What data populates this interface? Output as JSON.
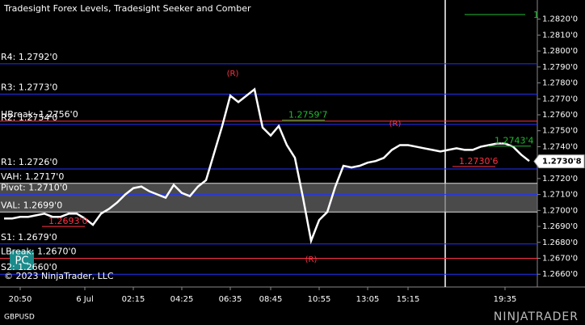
{
  "chart_data": {
    "type": "line",
    "title": "Tradesight Forex Levels, Tradesight Seeker and Comber",
    "symbol": "GBPUSD",
    "copyright": "© 2023 NinjaTrader, LLC",
    "button": "PC",
    "brand": "NINJATRADER",
    "corner_label": "1",
    "ylim": [
      1.2652,
      1.2832
    ],
    "yticks": [
      {
        "value": 1.282,
        "label": "1.2820'0"
      },
      {
        "value": 1.281,
        "label": "1.2810'0"
      },
      {
        "value": 1.28,
        "label": "1.2800'0"
      },
      {
        "value": 1.279,
        "label": "1.2790'0"
      },
      {
        "value": 1.278,
        "label": "1.2780'0"
      },
      {
        "value": 1.277,
        "label": "1.2770'0"
      },
      {
        "value": 1.276,
        "label": "1.2760'0"
      },
      {
        "value": 1.275,
        "label": "1.2750'0"
      },
      {
        "value": 1.274,
        "label": "1.2740'0"
      },
      {
        "value": 1.273,
        "label": "1.2730'0"
      },
      {
        "value": 1.272,
        "label": "1.2720'0"
      },
      {
        "value": 1.271,
        "label": "1.2710'0"
      },
      {
        "value": 1.27,
        "label": "1.2700'0"
      },
      {
        "value": 1.269,
        "label": "1.2690'0"
      },
      {
        "value": 1.268,
        "label": "1.2680'0"
      },
      {
        "value": 1.267,
        "label": "1.2670'0"
      },
      {
        "value": 1.266,
        "label": "1.2660'0"
      }
    ],
    "categories": [
      null,
      null,
      "20:50",
      null,
      null,
      null,
      null,
      null,
      null,
      null,
      "6 Jul",
      null,
      null,
      null,
      null,
      null,
      "02:15",
      null,
      null,
      null,
      null,
      null,
      "04:25",
      null,
      null,
      null,
      null,
      null,
      "06:35",
      null,
      null,
      null,
      null,
      "08:45",
      null,
      null,
      null,
      null,
      null,
      "10:55",
      null,
      null,
      null,
      null,
      null,
      "13:05",
      null,
      null,
      null,
      null,
      "15:15",
      null,
      null,
      null,
      null,
      null,
      null,
      null,
      null,
      null,
      null,
      null,
      "19:35",
      null,
      null,
      null
    ],
    "series": [
      {
        "name": "GBPUSD",
        "color": "#ffffff",
        "values": [
          1.2695,
          1.2695,
          1.2696,
          1.2696,
          1.2697,
          1.2698,
          1.2696,
          1.2696,
          1.2698,
          1.2698,
          1.2695,
          1.2691,
          1.2698,
          1.2701,
          1.2705,
          1.271,
          1.2714,
          1.2715,
          1.2712,
          1.271,
          1.2708,
          1.2716,
          1.2711,
          1.2709,
          1.2715,
          1.2719,
          1.2736,
          1.2753,
          1.2772,
          1.2768,
          1.2772,
          1.2776,
          1.2752,
          1.2747,
          1.2753,
          1.2741,
          1.2733,
          1.2708,
          1.2681,
          1.2694,
          1.2699,
          1.2715,
          1.2728,
          1.2727,
          1.2728,
          1.273,
          1.2731,
          1.2733,
          1.2738,
          1.2741,
          1.2741,
          1.274,
          1.2739,
          1.2738,
          1.2737,
          1.2738,
          1.2739,
          1.2738,
          1.2738,
          1.274,
          1.2741,
          1.2742,
          1.2742,
          1.274,
          1.2735,
          1.2731
        ]
      }
    ],
    "levels": [
      {
        "label": "R4: 1.2792'0",
        "value": 1.2792,
        "color": "#2233ff"
      },
      {
        "label": "R3: 1.2773'0",
        "value": 1.2773,
        "color": "#2233ff"
      },
      {
        "label": "HBreak: 1.2756'0",
        "value": 1.2756,
        "color": "#ff3344"
      },
      {
        "label": "R2: 1.2754'0",
        "value": 1.2754,
        "color": "#2233ff"
      },
      {
        "label": "R1: 1.2726'0",
        "value": 1.2726,
        "color": "#2233ff"
      },
      {
        "label": "VAH: 1.2717'0",
        "value": 1.2717,
        "color": "#dddddd"
      },
      {
        "label": "Pivot: 1.2710'0",
        "value": 1.271,
        "color": "#2233ff"
      },
      {
        "label": "VAL: 1.2699'0",
        "value": 1.2699,
        "color": "#dddddd"
      },
      {
        "label": "S1: 1.2679'0",
        "value": 1.2679,
        "color": "#2233ff"
      },
      {
        "label": "LBreak: 1.2670'0",
        "value": 1.267,
        "color": "#ff3344"
      },
      {
        "label": "S2: 1.2660'0",
        "value": 1.266,
        "color": "#2233ff"
      }
    ],
    "annotations": [
      {
        "label": "1.2759'7",
        "value": 1.27597,
        "color": "#22bb33"
      },
      {
        "label": "1.2743'4",
        "value": 1.27434,
        "color": "#22bb33"
      },
      {
        "label": "1.2730'6",
        "value": 1.27306,
        "color": "#ff3344"
      },
      {
        "label": "1.2693'0",
        "value": 1.2693,
        "color": "#ff3344"
      }
    ],
    "markers": [
      "(R)",
      "(R)",
      "(R)"
    ],
    "last_price": {
      "value": 1.27308,
      "label": "1.2730'8"
    }
  }
}
